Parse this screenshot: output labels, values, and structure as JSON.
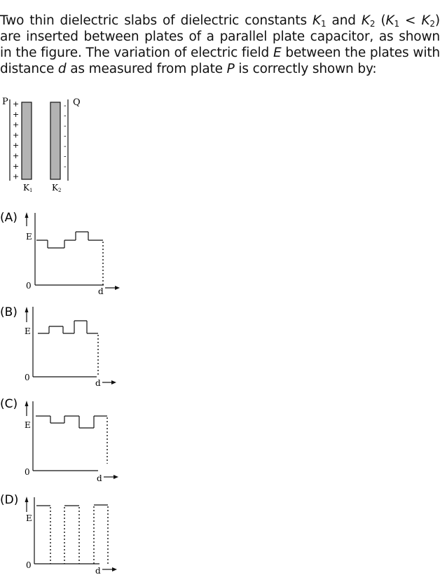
{
  "question": {
    "p1": "Two thin dielectric slabs of dielectric constants ",
    "k1_sym": "K",
    "k1_sub": "1",
    "p2": " and ",
    "k2_sym": "K",
    "k2_sub": "2",
    "p3": " (",
    "cmp_k1_sym": "K",
    "cmp_k1_sub": "1",
    "cmp_lt": " < ",
    "cmp_k2_sym": "K",
    "cmp_k2_sub": "2",
    "p4": ") are inserted between plates of a parallel plate capacitor, as shown in the figure. The variation of electric field ",
    "e_sym": "E",
    "p5": " between the plates with distance ",
    "d_sym": "d",
    "p6": " as measured from plate ",
    "p_sym": "P",
    "p7": " is correctly shown by:"
  },
  "figure": {
    "plate_p_label": "P",
    "plate_q_label": "Q",
    "slab1_label": "K",
    "slab1_sub": "1",
    "slab2_label": "K",
    "slab2_sub": "2",
    "plus_sign": "+",
    "minus_sign": "-",
    "slab_color": "#b3b3b3"
  },
  "options": [
    {
      "label": "(A)",
      "y_axis": "E",
      "origin": "0",
      "x_axis": "d"
    },
    {
      "label": "(B)",
      "y_axis": "E",
      "origin": "0",
      "x_axis": "d"
    },
    {
      "label": "(C)",
      "y_axis": "E",
      "origin": "0",
      "x_axis": "d"
    },
    {
      "label": "(D)",
      "y_axis": "E",
      "origin": "0",
      "x_axis": "d"
    }
  ]
}
